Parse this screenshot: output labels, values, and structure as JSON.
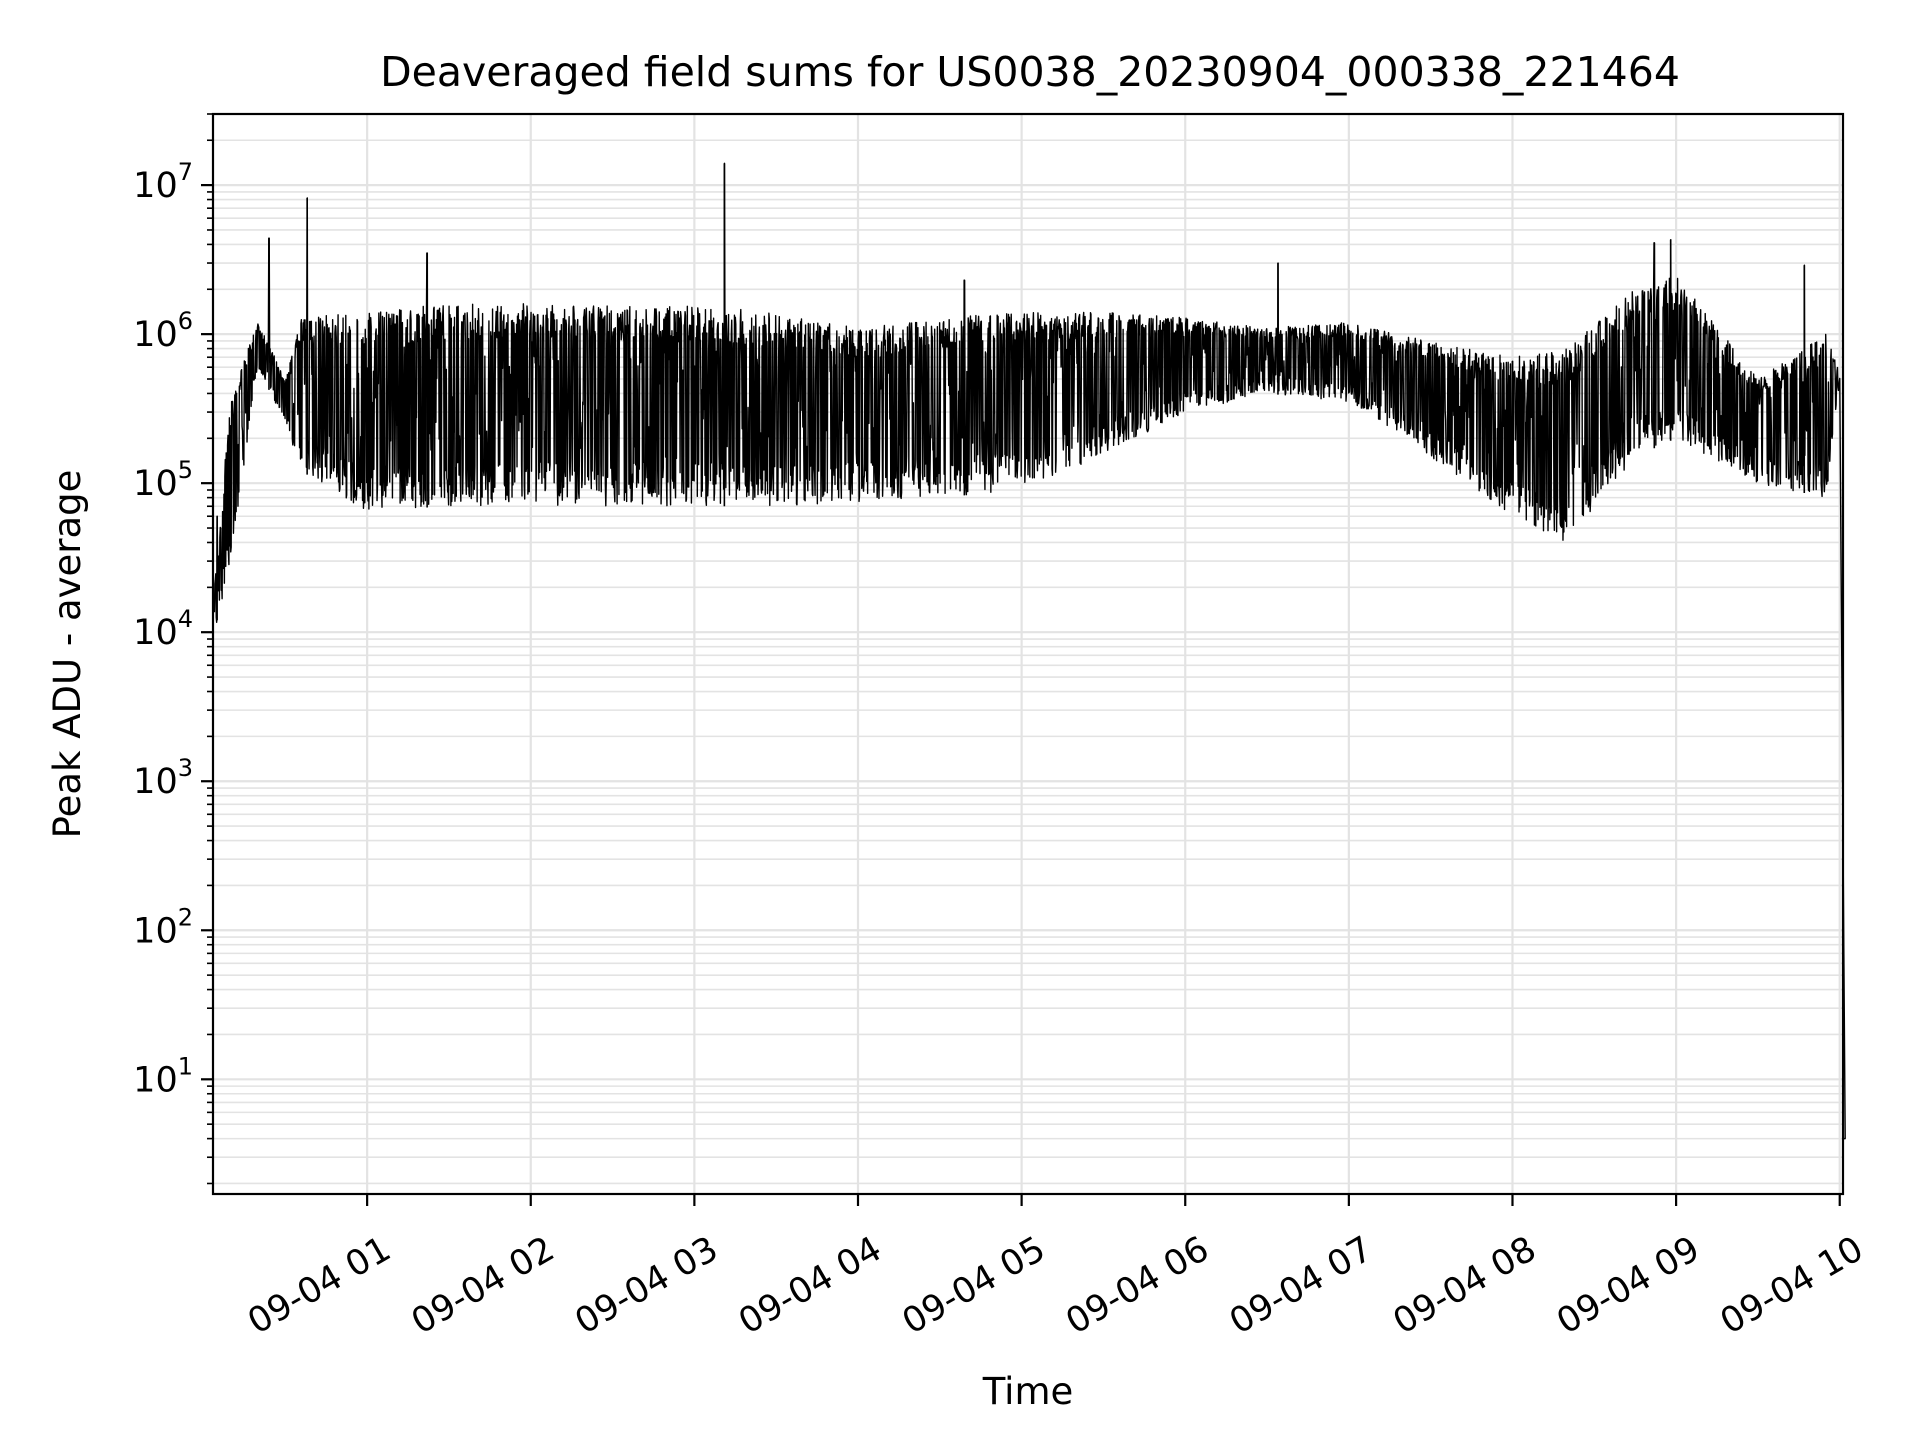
{
  "chart_data": {
    "type": "line",
    "title": "Deaveraged field sums for US0038_20230904_000338_221464",
    "xlabel": "Time",
    "ylabel": "Peak ADU - average",
    "yscale": "log",
    "ylim": [
      1.7,
      30000000
    ],
    "xlim_hours": [
      0.058,
      10.02
    ],
    "grid": "major and minor, light gray",
    "line_color": "#000000",
    "x_tick_labels": [
      "09-04 01",
      "09-04 02",
      "09-04 03",
      "09-04 04",
      "09-04 05",
      "09-04 06",
      "09-04 07",
      "09-04 08",
      "09-04 09",
      "09-04 10"
    ],
    "y_ticks": [
      {
        "base": "10",
        "exp": "1",
        "value": 10
      },
      {
        "base": "10",
        "exp": "2",
        "value": 100
      },
      {
        "base": "10",
        "exp": "3",
        "value": 1000
      },
      {
        "base": "10",
        "exp": "4",
        "value": 10000
      },
      {
        "base": "10",
        "exp": "5",
        "value": 100000
      },
      {
        "base": "10",
        "exp": "6",
        "value": 1000000
      },
      {
        "base": "10",
        "exp": "7",
        "value": 10000000
      }
    ],
    "series_envelope": {
      "time": [
        "09-04 00:04",
        "09-04 00:10",
        "09-04 00:20",
        "09-04 00:30",
        "09-04 00:36",
        "09-04 01:00",
        "09-04 01:30",
        "09-04 02:00",
        "09-04 02:30",
        "09-04 03:00",
        "09-04 03:30",
        "09-04 04:00",
        "09-04 04:30",
        "09-04 05:00",
        "09-04 05:30",
        "09-04 06:00",
        "09-04 06:30",
        "09-04 07:00",
        "09-04 07:30",
        "09-04 08:00",
        "09-04 08:20",
        "09-04 08:45",
        "09-04 09:00",
        "09-04 09:30",
        "09-04 09:55",
        "09-04 10:00",
        "09-04 10:02"
      ],
      "low": [
        10000,
        30000,
        600000,
        250000,
        120000,
        65000,
        70000,
        70000,
        70000,
        70000,
        70000,
        75000,
        80000,
        90000,
        150000,
        300000,
        400000,
        350000,
        150000,
        60000,
        40000,
        150000,
        200000,
        100000,
        80000,
        500000,
        4
      ],
      "high": [
        20000,
        400000,
        1200000,
        500000,
        1300000,
        1400000,
        1600000,
        1600000,
        1550000,
        1550000,
        1400000,
        1100000,
        1300000,
        1400000,
        1400000,
        1300000,
        1100000,
        1200000,
        900000,
        700000,
        800000,
        2000000,
        2500000,
        500000,
        1000000,
        550000,
        4
      ]
    },
    "spikes": [
      {
        "time": "09-04 00:05",
        "value": 60000
      },
      {
        "time": "09-04 00:24",
        "value": 4400000
      },
      {
        "time": "09-04 00:38",
        "value": 8200000
      },
      {
        "time": "09-04 01:22",
        "value": 3500000
      },
      {
        "time": "09-04 03:11",
        "value": 14000000
      },
      {
        "time": "09-04 04:39",
        "value": 2300000
      },
      {
        "time": "09-04 06:34",
        "value": 3000000
      },
      {
        "time": "09-04 08:52",
        "value": 4100000
      },
      {
        "time": "09-04 08:58",
        "value": 4300000
      },
      {
        "time": "09-04 09:47",
        "value": 2900000
      }
    ]
  }
}
